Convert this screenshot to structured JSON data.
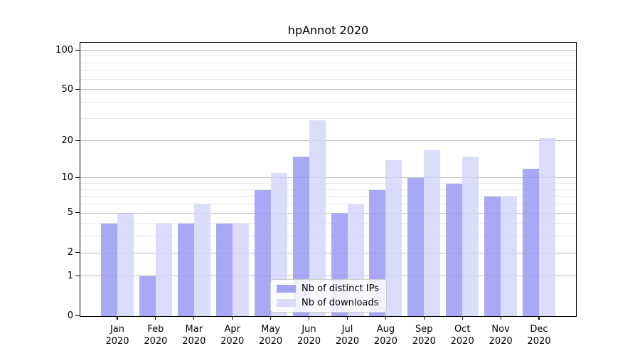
{
  "chart_data": {
    "type": "bar",
    "title": "hpAnnot 2020",
    "xlabel": "",
    "ylabel": "",
    "year": "2020",
    "categories": [
      "Jan",
      "Feb",
      "Mar",
      "Apr",
      "May",
      "Jun",
      "Jul",
      "Aug",
      "Sep",
      "Oct",
      "Nov",
      "Dec"
    ],
    "series": [
      {
        "name": "Nb of distinct IPs",
        "values": [
          4,
          1,
          4,
          4,
          8,
          15,
          5,
          8,
          10,
          9,
          7,
          12
        ],
        "fill": "rgba(146,146,242,0.8)",
        "swatch": "#a4a4f3"
      },
      {
        "name": "Nb of downloads",
        "values": [
          5,
          4,
          6,
          4,
          11,
          29,
          6,
          14,
          17,
          15,
          7,
          21
        ],
        "fill": "rgba(210,210,249,0.8)",
        "swatch": "#dbdbfa"
      }
    ],
    "y_scale": "log1p",
    "y_ticks_major": [
      0,
      1,
      2,
      5,
      10,
      20,
      50,
      100
    ],
    "y_ticks_minor": [
      3,
      4,
      6,
      7,
      8,
      9,
      30,
      40,
      60,
      70,
      80,
      90
    ],
    "ylim": [
      0,
      113
    ],
    "grid": "horizontal",
    "legend_position": "lower-center-inside"
  },
  "colors": {
    "grid_major": "#bdbdbd",
    "grid_minor": "#e8e8e8",
    "axis": "#000000",
    "text": "#000000",
    "legend_border": "#cccccc",
    "legend_bg": "rgba(255,255,255,0.85)"
  }
}
